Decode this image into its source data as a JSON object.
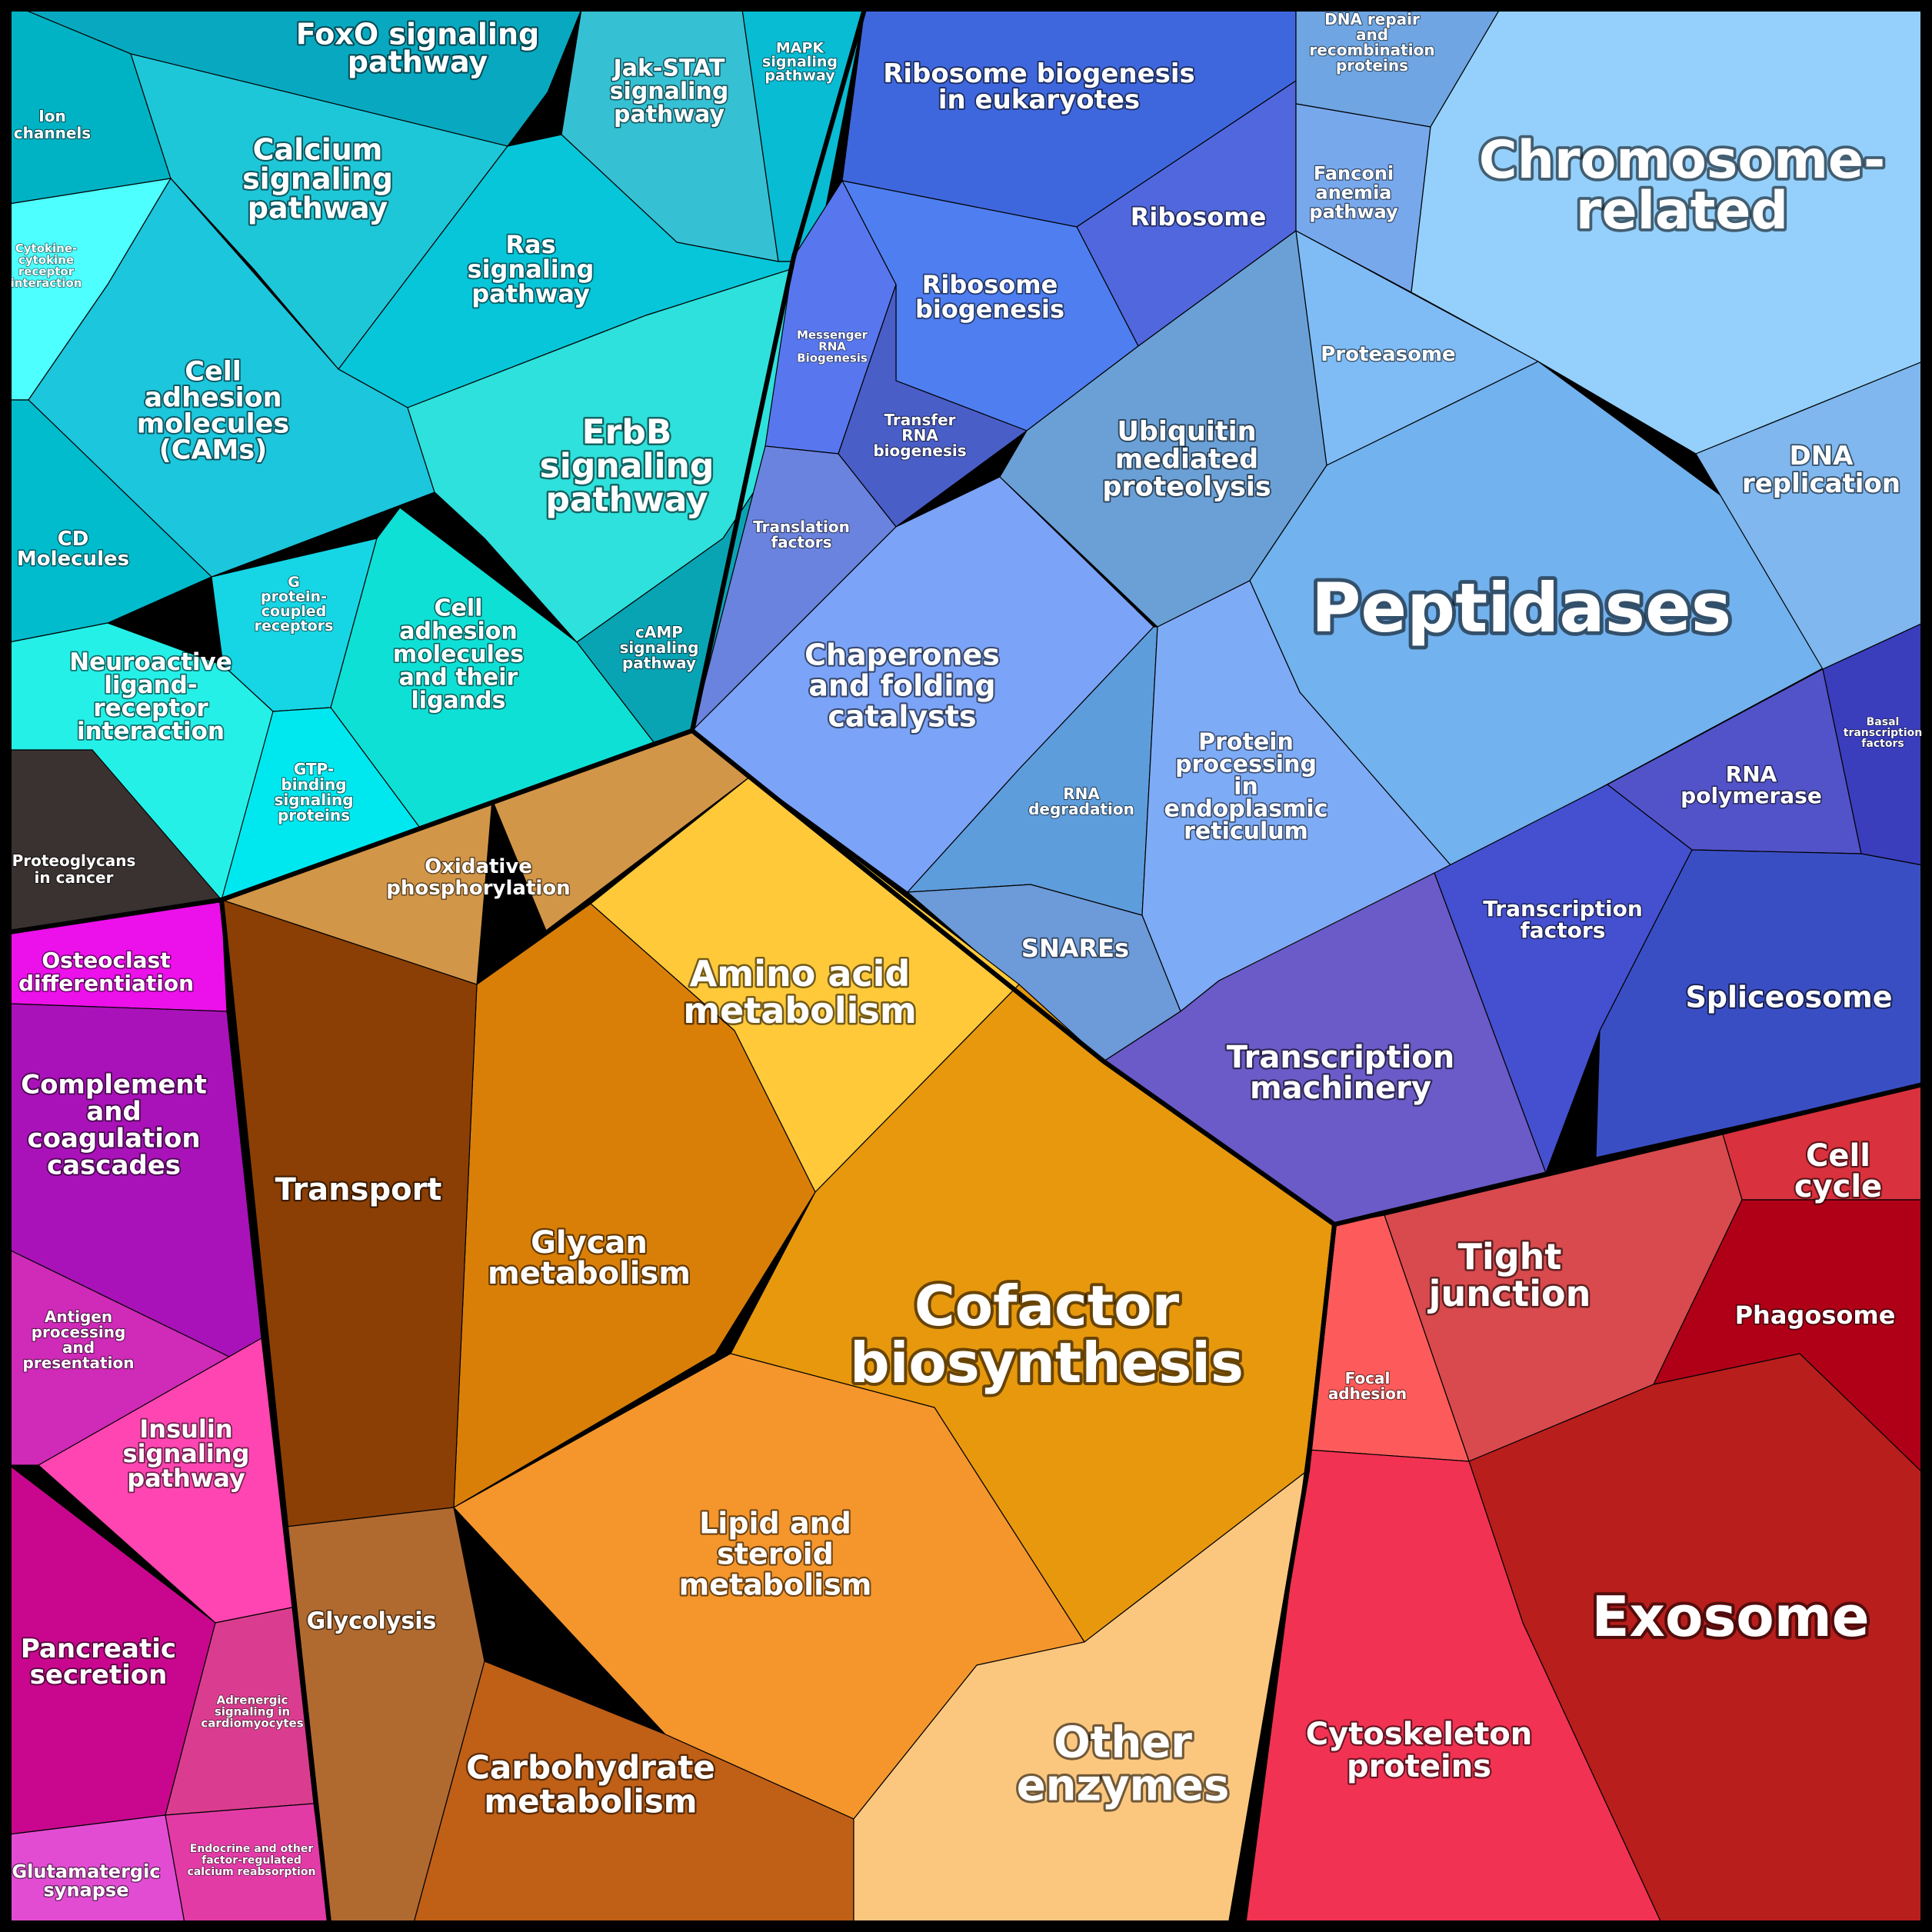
{
  "groups": [
    {
      "id": "signaling",
      "color": "#00bcd0",
      "label": "",
      "cells": [
        {
          "name": "FoxO signaling pathway",
          "color": "#08a9c0"
        },
        {
          "name": "Jak-STAT signaling pathway",
          "color": "#35c1d3"
        },
        {
          "name": "MAPK signaling pathway",
          "color": "#07bcd3"
        },
        {
          "name": "Ion channels",
          "color": "#00b3c4"
        },
        {
          "name": "Calcium signaling pathway",
          "color": "#1ec7d8"
        },
        {
          "name": "Ras signaling pathway",
          "color": "#07c6d9"
        },
        {
          "name": "Cytokine-cytokine receptor interaction",
          "color": "#4dffff"
        },
        {
          "name": "Cell adhesion molecules (CAMs)",
          "color": "#1cc6dc"
        },
        {
          "name": "ErbB signaling pathway",
          "color": "#2ee1dc"
        },
        {
          "name": "CD Molecules",
          "color": "#00bccd"
        },
        {
          "name": "G protein-coupled receptors",
          "color": "#16d6e5"
        },
        {
          "name": "Cell adhesion molecules and their ligands",
          "color": "#0fe0d5"
        },
        {
          "name": "cAMP signaling pathway",
          "color": "#09a4b4"
        },
        {
          "name": "Neuroactive ligand-receptor interaction",
          "color": "#24f0e8"
        },
        {
          "name": "GTP-binding signaling proteins",
          "color": "#00e8ef"
        },
        {
          "name": "Proteoglycans in cancer",
          "color": "#3a3131"
        }
      ]
    },
    {
      "id": "genetic-information",
      "color": "#4a6fe0",
      "label": "",
      "cells": [
        {
          "name": "Ribosome biogenesis in eukaryotes",
          "color": "#3f67dd"
        },
        {
          "name": "Ribosome",
          "color": "#5167dd"
        },
        {
          "name": "Ribosome biogenesis",
          "color": "#4f7ef0"
        },
        {
          "name": "Messenger RNA Biogenesis",
          "color": "#5877ee"
        },
        {
          "name": "Transfer RNA biogenesis",
          "color": "#4a5ec8"
        },
        {
          "name": "Translation factors",
          "color": "#6a83de"
        },
        {
          "name": "Chaperones and folding catalysts",
          "color": "#7ba3f7"
        },
        {
          "name": "Ubiquitin mediated proteolysis",
          "color": "#6aa0d6"
        },
        {
          "name": "Proteasome",
          "color": "#7fbcf6"
        },
        {
          "name": "Peptidases",
          "color": "#72b2ee"
        },
        {
          "name": "RNA degradation",
          "color": "#5e9ddc"
        },
        {
          "name": "Protein processing in endoplasmic reticulum",
          "color": "#7eabf5"
        },
        {
          "name": "SNAREs",
          "color": "#6d9ad8"
        },
        {
          "name": "Transcription machinery",
          "color": "#6a5bc8"
        },
        {
          "name": "Transcription factors",
          "color": "#4450cf"
        },
        {
          "name": "RNA polymerase",
          "color": "#5253c9"
        },
        {
          "name": "Basal transcription factors",
          "color": "#3a3dbc"
        },
        {
          "name": "Spliceosome",
          "color": "#3a4ec4"
        },
        {
          "name": "DNA repair and recombination proteins",
          "color": "#6ea5e2"
        },
        {
          "name": "Fanconi anemia pathway",
          "color": "#78a8ec"
        },
        {
          "name": "Chromosome-related",
          "color": "#94d0fb"
        },
        {
          "name": "DNA replication",
          "color": "#7fb7ee"
        }
      ]
    },
    {
      "id": "metabolism",
      "color": "#f0a030",
      "label": "",
      "cells": [
        {
          "name": "Oxidative phosphorylation",
          "color": "#d29648"
        },
        {
          "name": "Amino acid metabolism",
          "color": "#ffc93a"
        },
        {
          "name": "Glycan metabolism",
          "color": "#d97f08"
        },
        {
          "name": "Cofactor biosynthesis",
          "color": "#e7980d"
        },
        {
          "name": "Transport",
          "color": "#8b3f05"
        },
        {
          "name": "Glycolysis",
          "color": "#b06a30"
        },
        {
          "name": "Lipid and steroid metabolism",
          "color": "#f4962c"
        },
        {
          "name": "Carbohydrate metabolism",
          "color": "#c05f16"
        },
        {
          "name": "Other enzymes",
          "color": "#fbc77f"
        }
      ]
    },
    {
      "id": "organismal",
      "color": "#c21bb9",
      "label": "",
      "cells": [
        {
          "name": "Osteoclast differentiation",
          "color": "#ec10ea"
        },
        {
          "name": "Complement and coagulation cascades",
          "color": "#a912b9"
        },
        {
          "name": "Antigen processing and presentation",
          "color": "#cf2ab8"
        },
        {
          "name": "Insulin signaling pathway",
          "color": "#ff45b1"
        },
        {
          "name": "Pancreatic secretion",
          "color": "#c9078e"
        },
        {
          "name": "Adrenergic signaling in cardiomyocytes",
          "color": "#da3d8f"
        },
        {
          "name": "Glutamatergic synapse",
          "color": "#e24cd3"
        },
        {
          "name": "Endocrine and other factor-regulated calcium reabsorption",
          "color": "#e23ba6"
        }
      ]
    },
    {
      "id": "cellular-processes",
      "color": "#c81e28",
      "label": "",
      "cells": [
        {
          "name": "Cell cycle",
          "color": "#d9313d"
        },
        {
          "name": "Tight junction",
          "color": "#d84a4d"
        },
        {
          "name": "Focal adhesion",
          "color": "#fd5b5b"
        },
        {
          "name": "Phagosome",
          "color": "#b00018"
        },
        {
          "name": "Exosome",
          "color": "#b81e1c"
        },
        {
          "name": "Cytoskeleton proteins",
          "color": "#f23252"
        }
      ]
    }
  ]
}
